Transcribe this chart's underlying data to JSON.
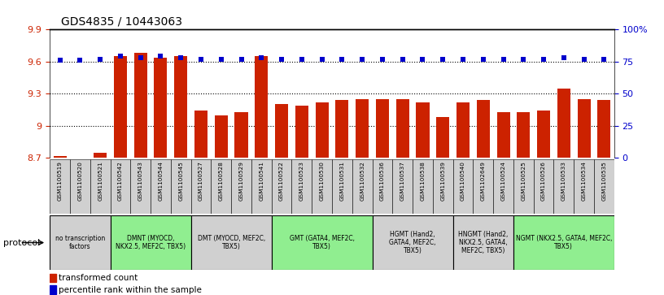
{
  "title": "GDS4835 / 10443063",
  "samples": [
    "GSM1100519",
    "GSM1100520",
    "GSM1100521",
    "GSM1100542",
    "GSM1100543",
    "GSM1100544",
    "GSM1100545",
    "GSM1100527",
    "GSM1100528",
    "GSM1100529",
    "GSM1100541",
    "GSM1100522",
    "GSM1100523",
    "GSM1100530",
    "GSM1100531",
    "GSM1100532",
    "GSM1100536",
    "GSM1100537",
    "GSM1100538",
    "GSM1100539",
    "GSM1100540",
    "GSM1102649",
    "GSM1100524",
    "GSM1100525",
    "GSM1100526",
    "GSM1100533",
    "GSM1100534",
    "GSM1100535"
  ],
  "red_values": [
    8.72,
    8.7,
    8.75,
    9.65,
    9.68,
    9.64,
    9.65,
    9.14,
    9.1,
    9.13,
    9.65,
    9.2,
    9.19,
    9.22,
    9.24,
    9.25,
    9.25,
    9.25,
    9.22,
    9.08,
    9.22,
    9.24,
    9.13,
    9.13,
    9.14,
    9.35,
    9.25,
    9.24
  ],
  "blue_values": [
    76,
    76,
    77,
    79,
    78,
    79,
    78,
    77,
    77,
    77,
    78,
    77,
    77,
    77,
    77,
    77,
    77,
    77,
    77,
    77,
    77,
    77,
    77,
    77,
    77,
    78,
    77,
    77
  ],
  "ylim_left": [
    8.7,
    9.9
  ],
  "ylim_right": [
    0,
    100
  ],
  "yticks_left": [
    8.7,
    9.0,
    9.3,
    9.6,
    9.9
  ],
  "ytick_labels_left": [
    "8.7",
    "9",
    "9.3",
    "9.6",
    "9.9"
  ],
  "yticks_right": [
    0,
    25,
    50,
    75,
    100
  ],
  "ytick_labels_right": [
    "0",
    "25",
    "50",
    "75",
    "100%"
  ],
  "protocols": [
    {
      "label": "no transcription\nfactors",
      "start": 0,
      "end": 3,
      "color": "#d0d0d0"
    },
    {
      "label": "DMNT (MYOCD,\nNKX2.5, MEF2C, TBX5)",
      "start": 3,
      "end": 7,
      "color": "#90ee90"
    },
    {
      "label": "DMT (MYOCD, MEF2C,\nTBX5)",
      "start": 7,
      "end": 11,
      "color": "#d0d0d0"
    },
    {
      "label": "GMT (GATA4, MEF2C,\nTBX5)",
      "start": 11,
      "end": 16,
      "color": "#90ee90"
    },
    {
      "label": "HGMT (Hand2,\nGATA4, MEF2C,\nTBX5)",
      "start": 16,
      "end": 20,
      "color": "#d0d0d0"
    },
    {
      "label": "HNGMT (Hand2,\nNKX2.5, GATA4,\nMEF2C, TBX5)",
      "start": 20,
      "end": 23,
      "color": "#d0d0d0"
    },
    {
      "label": "NGMT (NKX2.5, GATA4, MEF2C,\nTBX5)",
      "start": 23,
      "end": 28,
      "color": "#90ee90"
    }
  ],
  "bar_color": "#cc2200",
  "dot_color": "#0000cc",
  "background_color": "#ffffff",
  "left_tick_color": "#cc2200",
  "right_tick_color": "#0000cc",
  "sample_box_color": "#d0d0d0",
  "ybase": 8.7
}
